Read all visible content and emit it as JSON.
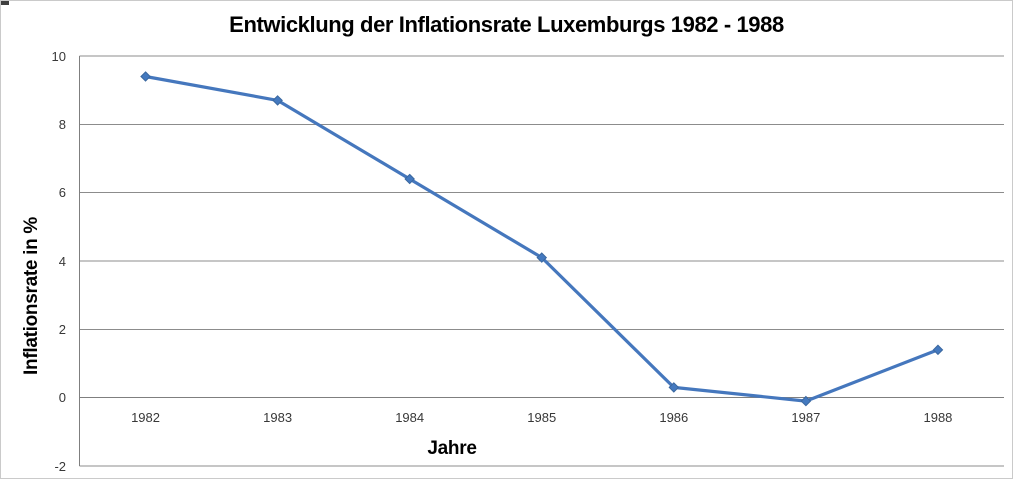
{
  "canvas": {
    "background": "#ffffff",
    "border_color": "#cacaca"
  },
  "chart_data": {
    "type": "line",
    "title": "Entwicklung der Inflationsrate Luxemburgs 1982 - 1988",
    "xlabel": "Jahre",
    "ylabel": "Inflationsrate in %",
    "categories": [
      "1982",
      "1983",
      "1984",
      "1985",
      "1986",
      "1987",
      "1988"
    ],
    "values": [
      9.4,
      8.7,
      6.4,
      4.1,
      0.3,
      -0.1,
      1.4
    ],
    "ylim": [
      -2,
      10
    ],
    "yticks": [
      10,
      8,
      6,
      4,
      2,
      0,
      -2
    ],
    "grid": "horizontal",
    "legend": false,
    "marker": "diamond",
    "colors": {
      "series_line": "#4577BD",
      "marker_fill": "#4479BF",
      "marker_edge": "#3A679E",
      "gridline": "#8C8C8C",
      "axis_line": "#7F7F7F",
      "title_text": "#000000",
      "tick_text": "#383838"
    }
  }
}
